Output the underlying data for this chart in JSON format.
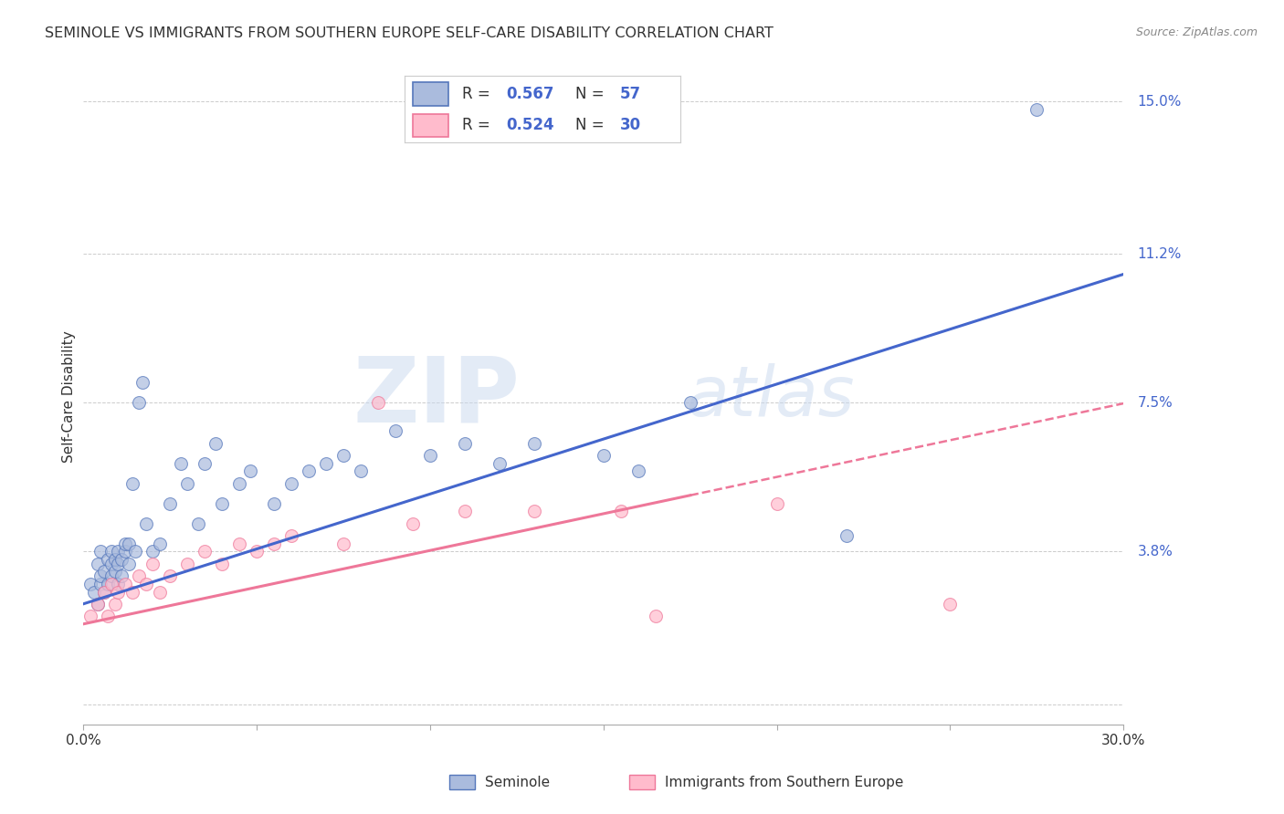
{
  "title": "SEMINOLE VS IMMIGRANTS FROM SOUTHERN EUROPE SELF-CARE DISABILITY CORRELATION CHART",
  "source": "Source: ZipAtlas.com",
  "ylabel": "Self-Care Disability",
  "yticks": [
    0.0,
    0.038,
    0.075,
    0.112,
    0.15
  ],
  "ytick_labels": [
    "",
    "3.8%",
    "7.5%",
    "11.2%",
    "15.0%"
  ],
  "xmin": 0.0,
  "xmax": 0.3,
  "ymin": -0.005,
  "ymax": 0.158,
  "r_blue": "0.567",
  "n_blue": "57",
  "r_pink": "0.524",
  "n_pink": "30",
  "legend_label1": "Seminole",
  "legend_label2": "Immigrants from Southern Europe",
  "color_blue_fill": "#AABBDD",
  "color_blue_edge": "#5577BB",
  "color_blue_line": "#4466CC",
  "color_pink_fill": "#FFBBCC",
  "color_pink_edge": "#EE7799",
  "color_pink_line": "#EE7799",
  "watermark_zip": "ZIP",
  "watermark_atlas": "atlas",
  "blue_dots_x": [
    0.002,
    0.003,
    0.004,
    0.004,
    0.005,
    0.005,
    0.005,
    0.006,
    0.006,
    0.007,
    0.007,
    0.008,
    0.008,
    0.008,
    0.009,
    0.009,
    0.01,
    0.01,
    0.01,
    0.011,
    0.011,
    0.012,
    0.012,
    0.013,
    0.013,
    0.014,
    0.015,
    0.016,
    0.017,
    0.018,
    0.02,
    0.022,
    0.025,
    0.028,
    0.03,
    0.033,
    0.035,
    0.038,
    0.04,
    0.045,
    0.048,
    0.055,
    0.06,
    0.065,
    0.07,
    0.075,
    0.08,
    0.09,
    0.1,
    0.11,
    0.12,
    0.13,
    0.15,
    0.16,
    0.175,
    0.22,
    0.275
  ],
  "blue_dots_y": [
    0.03,
    0.028,
    0.025,
    0.035,
    0.03,
    0.032,
    0.038,
    0.028,
    0.033,
    0.03,
    0.036,
    0.032,
    0.035,
    0.038,
    0.033,
    0.036,
    0.03,
    0.035,
    0.038,
    0.032,
    0.036,
    0.038,
    0.04,
    0.035,
    0.04,
    0.055,
    0.038,
    0.075,
    0.08,
    0.045,
    0.038,
    0.04,
    0.05,
    0.06,
    0.055,
    0.045,
    0.06,
    0.065,
    0.05,
    0.055,
    0.058,
    0.05,
    0.055,
    0.058,
    0.06,
    0.062,
    0.058,
    0.068,
    0.062,
    0.065,
    0.06,
    0.065,
    0.062,
    0.058,
    0.075,
    0.042,
    0.148
  ],
  "pink_dots_x": [
    0.002,
    0.004,
    0.006,
    0.007,
    0.008,
    0.009,
    0.01,
    0.012,
    0.014,
    0.016,
    0.018,
    0.02,
    0.022,
    0.025,
    0.03,
    0.035,
    0.04,
    0.045,
    0.05,
    0.055,
    0.06,
    0.075,
    0.085,
    0.095,
    0.11,
    0.13,
    0.155,
    0.165,
    0.2,
    0.25
  ],
  "pink_dots_y": [
    0.022,
    0.025,
    0.028,
    0.022,
    0.03,
    0.025,
    0.028,
    0.03,
    0.028,
    0.032,
    0.03,
    0.035,
    0.028,
    0.032,
    0.035,
    0.038,
    0.035,
    0.04,
    0.038,
    0.04,
    0.042,
    0.04,
    0.075,
    0.045,
    0.048,
    0.048,
    0.048,
    0.022,
    0.05,
    0.025
  ]
}
